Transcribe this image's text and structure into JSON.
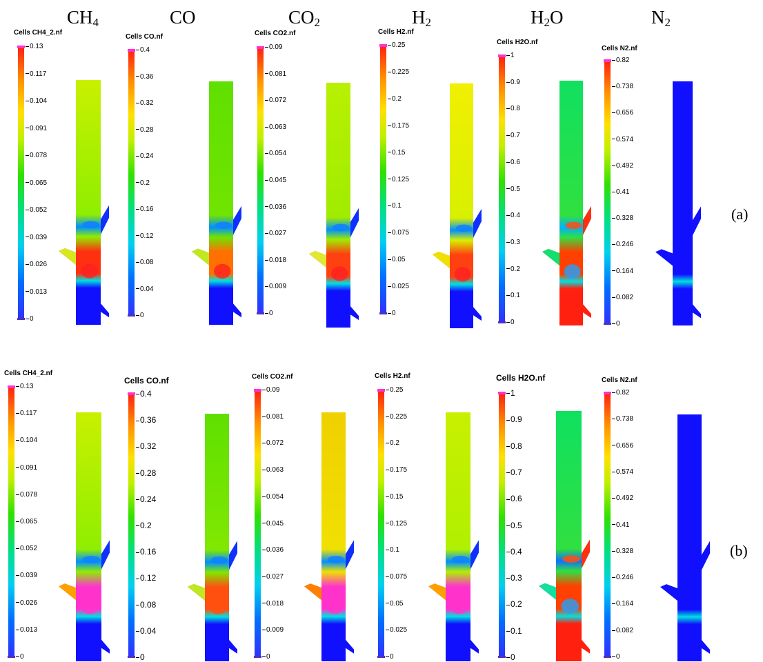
{
  "columns": [
    {
      "formula": "CH",
      "sub": "4"
    },
    {
      "formula": "CO",
      "sub": ""
    },
    {
      "formula": "CO",
      "sub": "2"
    },
    {
      "formula": "H",
      "sub": "2"
    },
    {
      "formula": "H",
      "sub": "2",
      "suffix": "O"
    },
    {
      "formula": "N",
      "sub": "2"
    }
  ],
  "row_labels": [
    "(a)",
    "(b)"
  ],
  "colorbars": [
    {
      "title": "Cells CH4_2.nf",
      "ticks": [
        "0.13",
        "0.117",
        "0.104",
        "0.091",
        "0.078",
        "0.065",
        "0.052",
        "0.039",
        "0.026",
        "0.013",
        "0"
      ]
    },
    {
      "title": "Cells CO.nf",
      "ticks": [
        "0.4",
        "0.36",
        "0.32",
        "0.28",
        "0.24",
        "0.2",
        "0.16",
        "0.12",
        "0.08",
        "0.04",
        "0"
      ]
    },
    {
      "title": "Cells CO2.nf",
      "ticks": [
        "0.09",
        "0.081",
        "0.072",
        "0.063",
        "0.054",
        "0.045",
        "0.036",
        "0.027",
        "0.018",
        "0.009",
        "0"
      ]
    },
    {
      "title": "Cells H2.nf",
      "ticks": [
        "0.25",
        "0.225",
        "0.2",
        "0.175",
        "0.15",
        "0.125",
        "0.1",
        "0.075",
        "0.05",
        "0.025",
        "0"
      ]
    },
    {
      "title": "Cells H2O.nf",
      "ticks": [
        "1",
        "0.9",
        "0.8",
        "0.7",
        "0.6",
        "0.5",
        "0.4",
        "0.3",
        "0.2",
        "0.1",
        "0"
      ]
    },
    {
      "title": "Cells N2.nf",
      "ticks": [
        "0.82",
        "0.738",
        "0.656",
        "0.574",
        "0.492",
        "0.41",
        "0.328",
        "0.246",
        "0.164",
        "0.082",
        "0"
      ]
    }
  ],
  "colors": {
    "scale": [
      "#2020ff",
      "#0090ff",
      "#00e0e0",
      "#00e060",
      "#40e000",
      "#b0f000",
      "#ffe000",
      "#ffa000",
      "#ff4000",
      "#ff2010"
    ],
    "cap": "#ff33cc",
    "low": "#1010ff",
    "hot": "#ff33cc"
  }
}
